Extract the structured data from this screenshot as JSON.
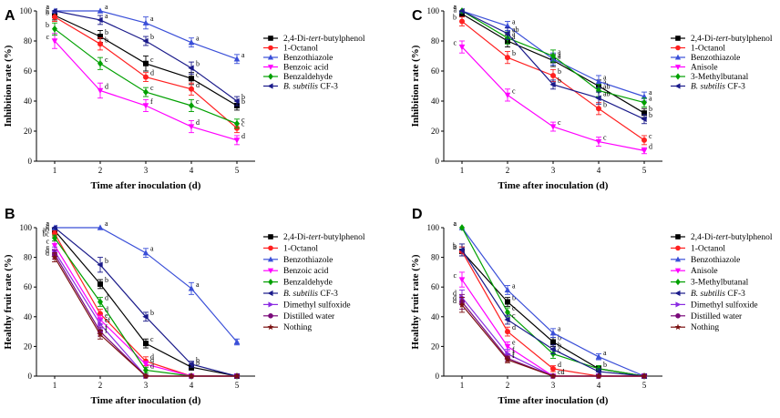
{
  "chart_data": [
    {
      "panel": "A",
      "type": "line",
      "xlabel": "Time after inoculation (d)",
      "ylabel": "Inhibition rate (%)",
      "x": [
        1,
        2,
        3,
        4,
        5
      ],
      "xlim": [
        0.6,
        5.4
      ],
      "ylim": [
        0,
        100
      ],
      "yticks": [
        0,
        20,
        40,
        60,
        80,
        100
      ],
      "legend": "right",
      "series": [
        {
          "name": "2,4-Di-",
          "name_italic": "tert",
          "name_suffix": "-butylphenol",
          "color": "#000000",
          "marker": "square",
          "values": [
            97,
            83,
            65,
            55,
            37
          ],
          "errors": [
            3,
            4,
            5,
            4,
            3
          ],
          "letters": [
            "a",
            "b",
            "c",
            "c",
            "b"
          ]
        },
        {
          "name": "1-Octanol",
          "color": "#ff2020",
          "marker": "circle",
          "values": [
            96,
            78,
            56,
            48,
            22
          ],
          "errors": [
            3,
            4,
            3,
            4,
            3
          ],
          "letters": [
            "b",
            "b",
            "d",
            "d",
            "c"
          ]
        },
        {
          "name": "Benzothiazole",
          "color": "#3a4fd8",
          "marker": "triangle-up",
          "values": [
            100,
            100,
            92,
            79,
            68
          ],
          "errors": [
            0,
            0,
            4,
            3,
            3
          ],
          "letters": [
            "a",
            "a",
            "a",
            "a",
            "a"
          ]
        },
        {
          "name": "Benzoic acid",
          "color": "#ff00ff",
          "marker": "triangle-down",
          "values": [
            80,
            47,
            37,
            23,
            14
          ],
          "errors": [
            5,
            5,
            4,
            4,
            3
          ],
          "letters": [
            "c",
            "d",
            "f",
            "d",
            "d"
          ]
        },
        {
          "name": "Benzaldehyde",
          "color": "#00a000",
          "marker": "diamond",
          "values": [
            88,
            65,
            46,
            37,
            25
          ],
          "errors": [
            4,
            4,
            3,
            4,
            3
          ],
          "letters": [
            "b",
            "c",
            "c",
            "c",
            "c"
          ]
        },
        {
          "name": "",
          "name_italic": "B. subtilis",
          "name_suffix": " CF-3",
          "color": "#1a1a8a",
          "marker": "triangle-left",
          "values": [
            100,
            94,
            80,
            62,
            40
          ],
          "errors": [
            0,
            3,
            3,
            4,
            3
          ],
          "letters": [
            "a",
            "a",
            "b",
            "b",
            "b"
          ]
        }
      ]
    },
    {
      "panel": "C",
      "type": "line",
      "xlabel": "Time after inoculation (d)",
      "ylabel": "Inhibition rate (%)",
      "x": [
        1,
        2,
        3,
        4,
        5
      ],
      "xlim": [
        0.6,
        5.4
      ],
      "ylim": [
        0,
        100
      ],
      "yticks": [
        0,
        20,
        40,
        60,
        80,
        100
      ],
      "legend": "right",
      "series": [
        {
          "name": "2,4-Di-",
          "name_italic": "tert",
          "name_suffix": "-butylphenol",
          "color": "#000000",
          "marker": "square",
          "values": [
            98,
            80,
            67,
            50,
            32
          ],
          "errors": [
            2,
            4,
            4,
            4,
            3
          ],
          "letters": [
            "a",
            "a",
            "a",
            "a",
            "b"
          ]
        },
        {
          "name": "1-Octanol",
          "color": "#ff2020",
          "marker": "circle",
          "values": [
            93,
            69,
            57,
            35,
            14
          ],
          "errors": [
            3,
            4,
            4,
            4,
            3
          ],
          "letters": [
            "b",
            "b",
            "b",
            "b",
            "c"
          ]
        },
        {
          "name": "Benzothiazole",
          "color": "#3a4fd8",
          "marker": "triangle-up",
          "values": [
            100,
            90,
            68,
            53,
            43
          ],
          "errors": [
            0,
            3,
            4,
            4,
            3
          ],
          "letters": [
            "a",
            "a",
            "a",
            "a",
            "a"
          ]
        },
        {
          "name": "Anisole",
          "color": "#ff00ff",
          "marker": "triangle-down",
          "values": [
            76,
            44,
            23,
            13,
            7
          ],
          "errors": [
            4,
            4,
            3,
            3,
            2
          ],
          "letters": [
            "c",
            "c",
            "c",
            "c",
            "d"
          ]
        },
        {
          "name": "3-Methylbutanal",
          "color": "#00a000",
          "marker": "diamond",
          "values": [
            100,
            82,
            70,
            47,
            39
          ],
          "errors": [
            0,
            4,
            4,
            4,
            3
          ],
          "letters": [
            "a",
            "a",
            "a",
            "ab",
            "a"
          ]
        },
        {
          "name": "",
          "name_italic": "B. subtilis",
          "name_suffix": " CF-3",
          "color": "#1a1a8a",
          "marker": "triangle-left",
          "values": [
            100,
            85,
            51,
            42,
            28
          ],
          "errors": [
            0,
            4,
            3,
            4,
            3
          ],
          "letters": [
            "a",
            "ab",
            "b",
            "ab",
            "b"
          ]
        }
      ]
    },
    {
      "panel": "B",
      "type": "line",
      "xlabel": "Time after inoculation (d)",
      "ylabel": "Healthy fruit rate (%)",
      "x": [
        1,
        2,
        3,
        4,
        5
      ],
      "xlim": [
        0.6,
        5.4
      ],
      "ylim": [
        0,
        100
      ],
      "yticks": [
        0,
        20,
        40,
        60,
        80,
        100
      ],
      "legend": "right",
      "series": [
        {
          "name": "2,4-Di-",
          "name_italic": "tert",
          "name_suffix": "-butylphenol",
          "color": "#000000",
          "marker": "square",
          "values": [
            98,
            62,
            22,
            6,
            0
          ],
          "errors": [
            2,
            3,
            3,
            2,
            0
          ],
          "letters": [
            "a",
            "b",
            "c",
            "b",
            ""
          ]
        },
        {
          "name": "1-Octanol",
          "color": "#ff2020",
          "marker": "circle",
          "values": [
            96,
            42,
            10,
            0,
            0
          ],
          "errors": [
            2,
            3,
            3,
            0,
            0
          ],
          "letters": [
            "ab",
            "d",
            "d",
            "",
            ""
          ]
        },
        {
          "name": "Benzothiazole",
          "color": "#3a4fd8",
          "marker": "triangle-up",
          "values": [
            100,
            100,
            83,
            59,
            23
          ],
          "errors": [
            0,
            0,
            3,
            4,
            2
          ],
          "letters": [
            "a",
            "a",
            "a",
            "a",
            ""
          ]
        },
        {
          "name": "Benzoic acid",
          "color": "#ff00ff",
          "marker": "triangle-down",
          "values": [
            88,
            38,
            8,
            0,
            0
          ],
          "errors": [
            3,
            3,
            2,
            0,
            0
          ],
          "letters": [
            "c",
            "e",
            "d",
            "",
            ""
          ]
        },
        {
          "name": "Benzaldehyde",
          "color": "#00a000",
          "marker": "diamond",
          "values": [
            93,
            50,
            4,
            0,
            0
          ],
          "errors": [
            2,
            3,
            2,
            0,
            0
          ],
          "letters": [
            "bc",
            "d",
            "d",
            "",
            ""
          ]
        },
        {
          "name": "",
          "name_italic": "B. subtilis",
          "name_suffix": " CF-3",
          "color": "#1a1a8a",
          "marker": "triangle-left",
          "values": [
            100,
            75,
            40,
            8,
            0
          ],
          "errors": [
            0,
            5,
            3,
            2,
            0
          ],
          "letters": [
            "a",
            "b",
            "b",
            "b",
            ""
          ]
        },
        {
          "name": "Dimethyl sulfoxide",
          "color": "#8a2be2",
          "marker": "triangle-right",
          "values": [
            84,
            35,
            0,
            0,
            0
          ],
          "errors": [
            3,
            3,
            0,
            0,
            0
          ],
          "letters": [
            "c",
            "ef",
            "",
            "",
            ""
          ]
        },
        {
          "name": "Distilled water",
          "color": "#7a0a7a",
          "marker": "circle",
          "values": [
            82,
            30,
            0,
            0,
            0
          ],
          "errors": [
            3,
            3,
            0,
            0,
            0
          ],
          "letters": [
            "d",
            "f",
            "",
            "",
            ""
          ]
        },
        {
          "name": "Nothing",
          "color": "#7a1010",
          "marker": "star",
          "values": [
            80,
            28,
            0,
            0,
            0
          ],
          "errors": [
            3,
            3,
            0,
            0,
            0
          ],
          "letters": [
            "d",
            "f",
            "",
            "",
            ""
          ]
        }
      ]
    },
    {
      "panel": "D",
      "type": "line",
      "xlabel": "Time after inoculation (d)",
      "ylabel": "Healthy fruit rate (%)",
      "x": [
        1,
        2,
        3,
        4,
        5
      ],
      "xlim": [
        0.6,
        5.4
      ],
      "ylim": [
        0,
        100
      ],
      "yticks": [
        0,
        20,
        40,
        60,
        80,
        100
      ],
      "legend": "right",
      "series": [
        {
          "name": "2,4-Di-",
          "name_italic": "tert",
          "name_suffix": "-butylphenol",
          "color": "#000000",
          "marker": "square",
          "values": [
            84,
            50,
            23,
            5,
            0
          ],
          "errors": [
            3,
            3,
            3,
            2,
            0
          ],
          "letters": [
            "b",
            "b",
            "b",
            "b",
            ""
          ]
        },
        {
          "name": "1-Octanol",
          "color": "#ff2020",
          "marker": "circle",
          "values": [
            84,
            30,
            5,
            0,
            0
          ],
          "errors": [
            3,
            3,
            2,
            0,
            0
          ],
          "letters": [
            "b",
            "d",
            "d",
            "",
            ""
          ]
        },
        {
          "name": "Benzothiazole",
          "color": "#3a4fd8",
          "marker": "triangle-up",
          "values": [
            100,
            58,
            29,
            13,
            0
          ],
          "errors": [
            0,
            3,
            3,
            2,
            0
          ],
          "letters": [
            "a",
            "a",
            "a",
            "a",
            ""
          ]
        },
        {
          "name": "Anisole",
          "color": "#ff00ff",
          "marker": "triangle-down",
          "values": [
            65,
            20,
            0,
            0,
            0
          ],
          "errors": [
            5,
            3,
            0,
            0,
            0
          ],
          "letters": [
            "c",
            "e",
            "",
            "",
            ""
          ]
        },
        {
          "name": "3-Methylbutanal",
          "color": "#00a000",
          "marker": "diamond",
          "values": [
            100,
            43,
            15,
            5,
            0
          ],
          "errors": [
            0,
            3,
            3,
            2,
            0
          ],
          "letters": [
            "a",
            "c",
            "c",
            "",
            ""
          ]
        },
        {
          "name": "",
          "name_italic": "B. subtilis",
          "name_suffix": " CF-3",
          "color": "#1a1a8a",
          "marker": "triangle-left",
          "values": [
            85,
            38,
            18,
            3,
            0
          ],
          "errors": [
            4,
            3,
            3,
            2,
            0
          ],
          "letters": [
            "b",
            "c",
            "b",
            "",
            ""
          ]
        },
        {
          "name": "Dimethyl sulfoxide",
          "color": "#8a2be2",
          "marker": "triangle-right",
          "values": [
            53,
            15,
            0,
            0,
            0
          ],
          "errors": [
            5,
            3,
            0,
            0,
            0
          ],
          "letters": [
            "d",
            "f",
            "cd",
            "",
            ""
          ]
        },
        {
          "name": "Distilled water",
          "color": "#7a0a7a",
          "marker": "circle",
          "values": [
            50,
            12,
            0,
            0,
            0
          ],
          "errors": [
            5,
            2,
            0,
            0,
            0
          ],
          "letters": [
            "d",
            "f",
            "",
            "",
            ""
          ]
        },
        {
          "name": "Nothing",
          "color": "#7a1010",
          "marker": "star",
          "values": [
            48,
            11,
            0,
            0,
            0
          ],
          "errors": [
            5,
            2,
            0,
            0,
            0
          ],
          "letters": [
            "d",
            "f",
            "",
            "",
            ""
          ]
        }
      ]
    }
  ]
}
